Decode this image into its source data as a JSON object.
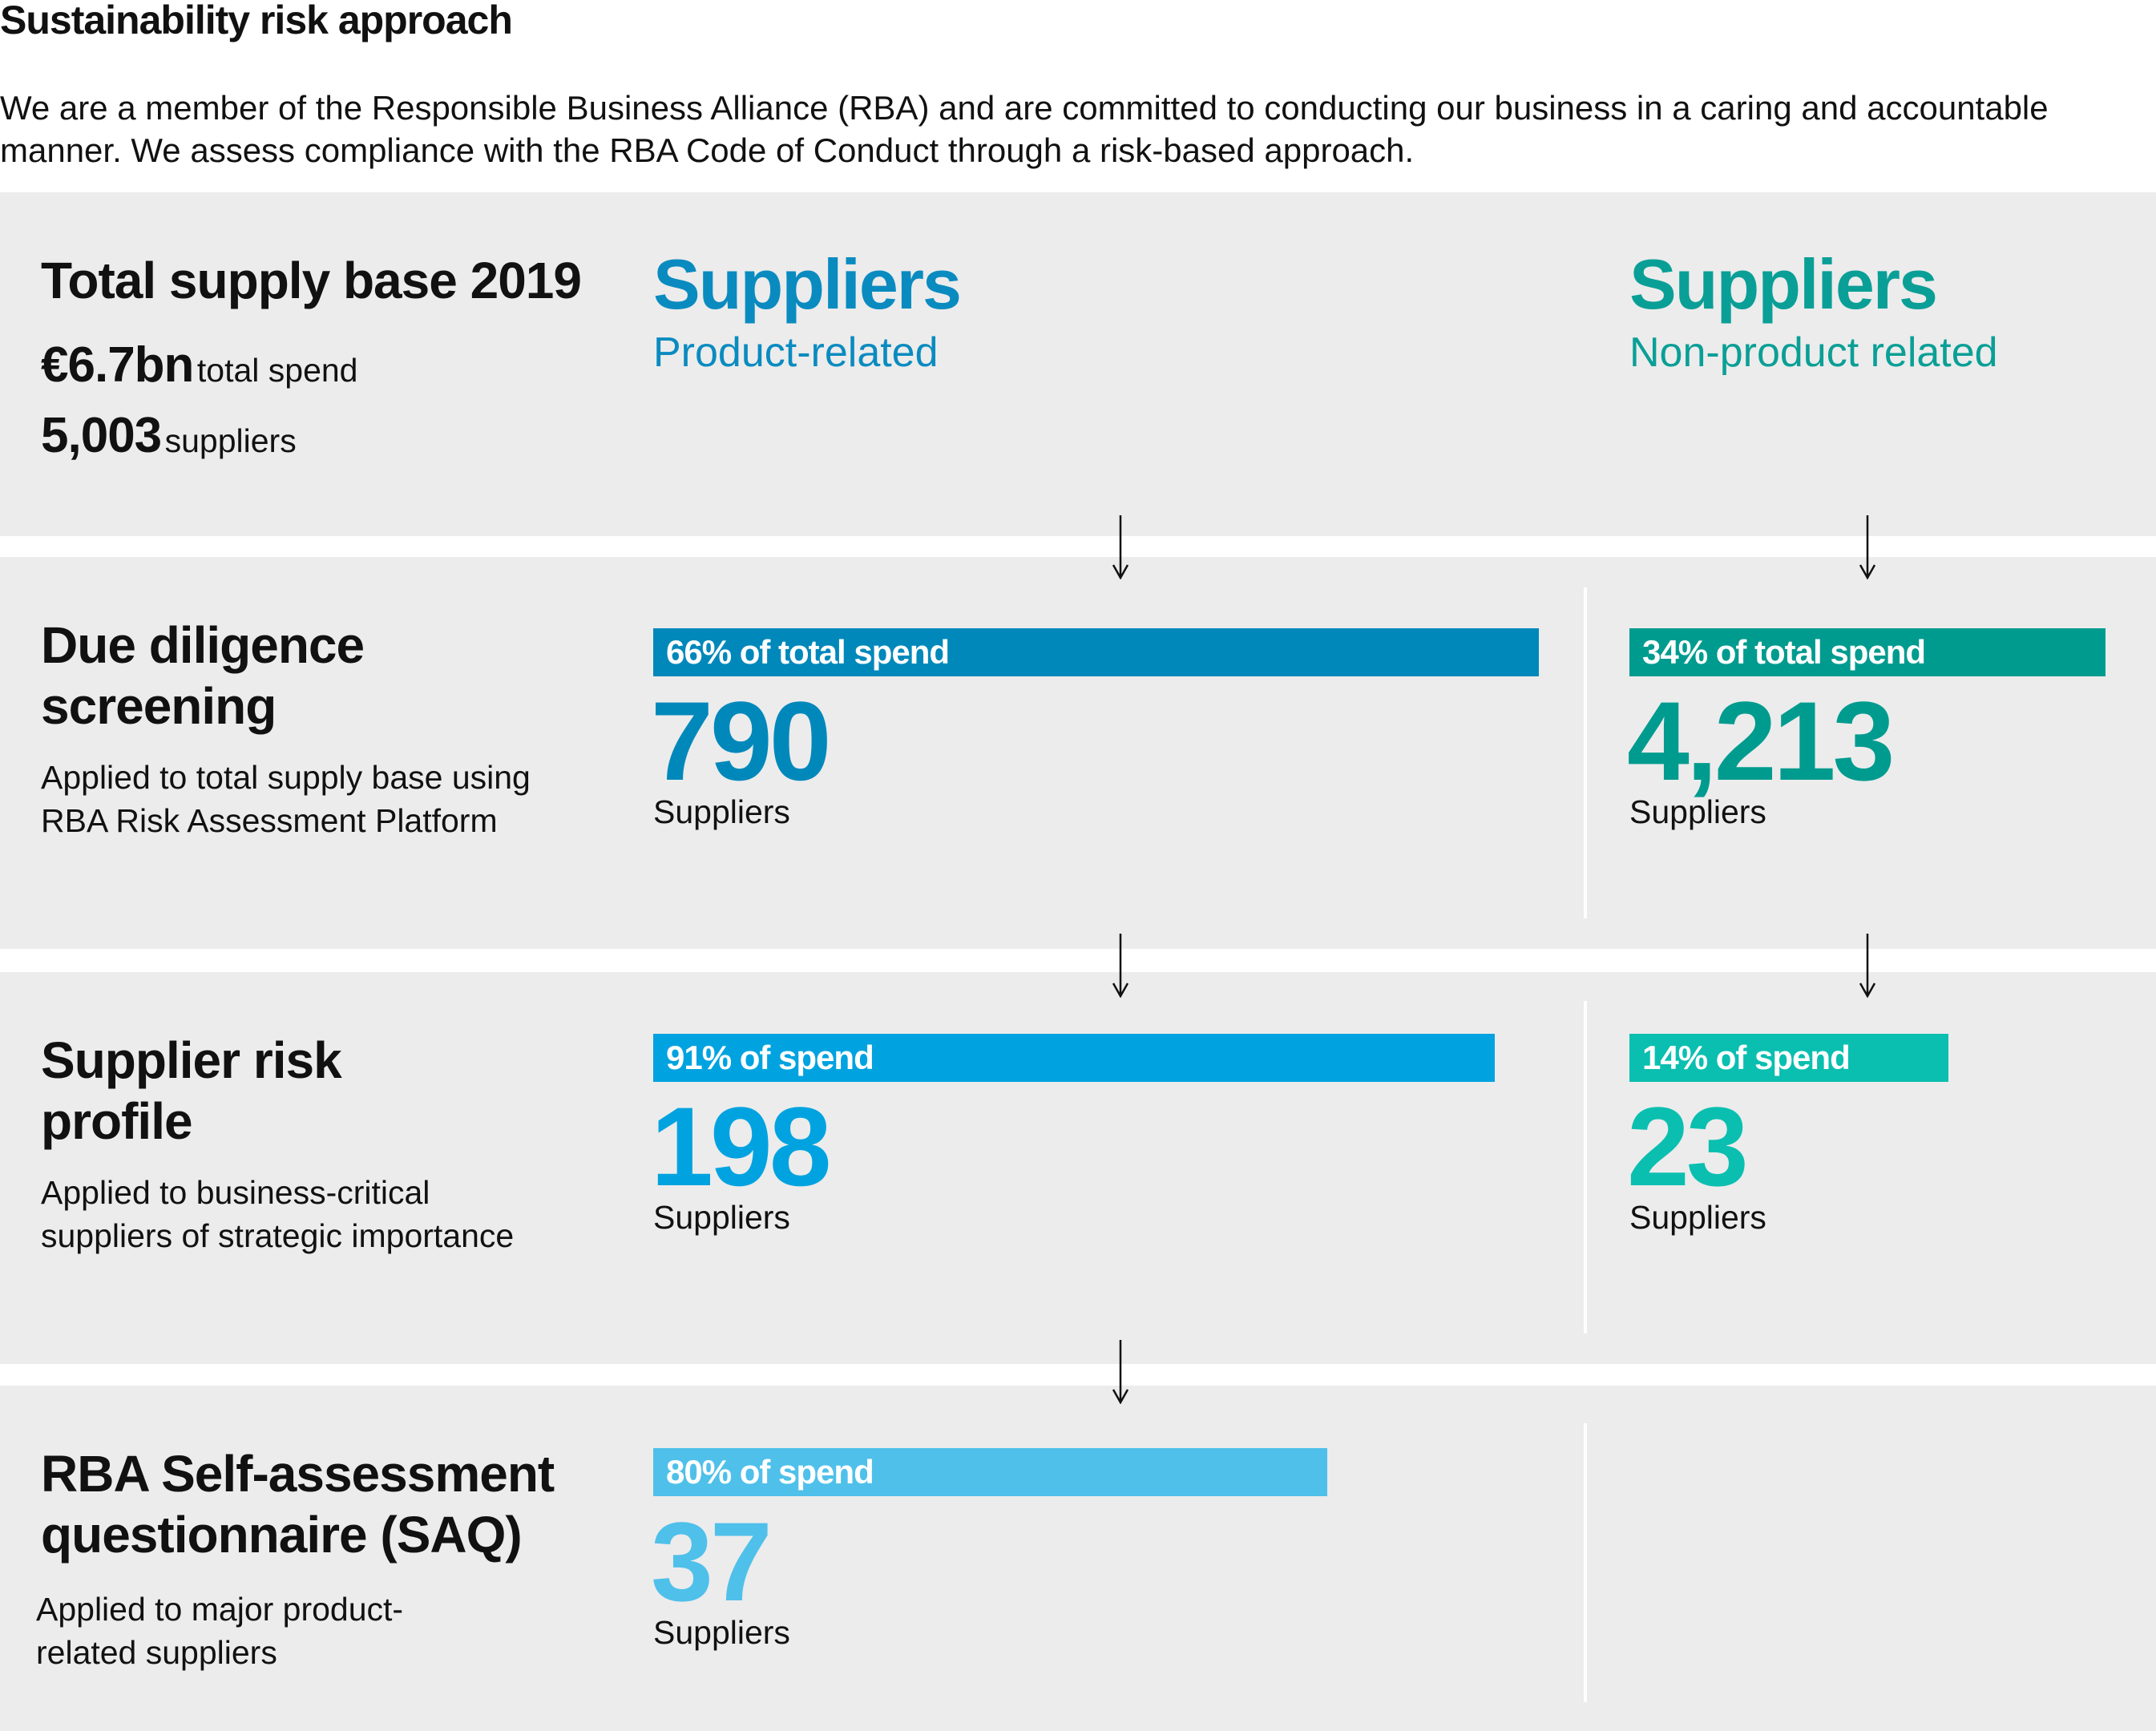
{
  "title": "Sustainability risk approach",
  "intro": "We are a member of the Responsible Business Alliance (RBA) and are committed to conducting our business in a caring and accountable manner. We assess compliance with the RBA Code of Conduct through a risk-based approach.",
  "total": {
    "heading": "Total supply base 2019",
    "spend_value": "€6.7bn",
    "spend_label": "total spend",
    "suppliers_value": "5,003",
    "suppliers_label": "suppliers"
  },
  "columns": {
    "product": {
      "title": "Suppliers",
      "subtitle": "Product-related",
      "color": "#0a8bc0"
    },
    "nonproduct": {
      "title": "Suppliers",
      "subtitle": "Non-product related",
      "color": "#0a9f96"
    }
  },
  "stages": [
    {
      "heading": "Due diligence screening",
      "description": "Applied to total supply base using RBA Risk Assessment Platform",
      "product": {
        "bar_label": "66% of total spend",
        "share": 66,
        "count": "790",
        "unit": "Suppliers",
        "color": "#0088bb"
      },
      "nonproduct": {
        "bar_label": "34% of total spend",
        "share": 34,
        "count": "4,213",
        "unit": "Suppliers",
        "color": "#009b8f"
      }
    },
    {
      "heading": "Supplier risk profile",
      "description": "Applied to business-critical suppliers of strategic importance",
      "product": {
        "bar_label": "91% of spend",
        "share": 91,
        "count": "198",
        "unit": "Suppliers",
        "color": "#00a3e0"
      },
      "nonproduct": {
        "bar_label": "14% of spend",
        "share": 14,
        "count": "23",
        "unit": "Suppliers",
        "color": "#0abfb0"
      }
    },
    {
      "heading": "RBA Self-assessment questionnaire (SAQ)",
      "description": "Applied to major product-related suppliers",
      "product": {
        "bar_label": "80% of spend",
        "share": 80,
        "count": "37",
        "unit": "Suppliers",
        "color": "#4fc0ea"
      }
    }
  ]
}
